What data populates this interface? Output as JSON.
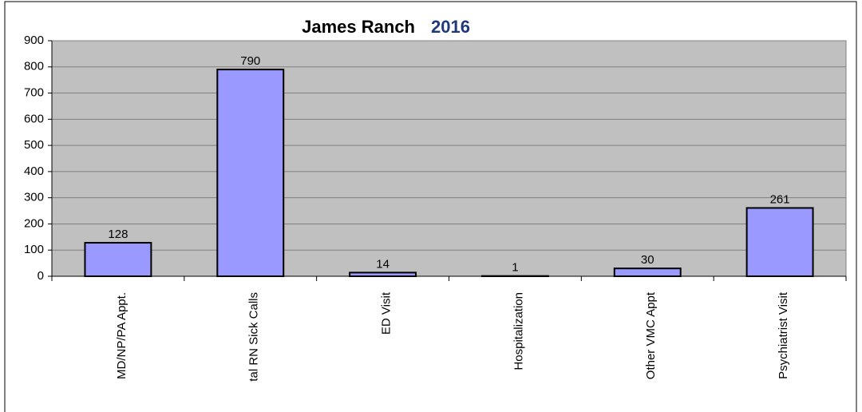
{
  "chart_data": {
    "type": "bar",
    "title": "James Ranch",
    "subtitle": "2016",
    "categories": [
      "MD/NP/PA Appt.",
      "tal RN Sick Calls",
      "ED Visit",
      "Hospitalization",
      "Other VMC Appt",
      "Psychiatrist Visit"
    ],
    "values": [
      128,
      790,
      14,
      1,
      30,
      261
    ],
    "color": "#9999ff",
    "ylim": [
      0,
      900
    ],
    "yticks": [
      0,
      100,
      200,
      300,
      400,
      500,
      600,
      700,
      800,
      900
    ],
    "grid": true
  }
}
